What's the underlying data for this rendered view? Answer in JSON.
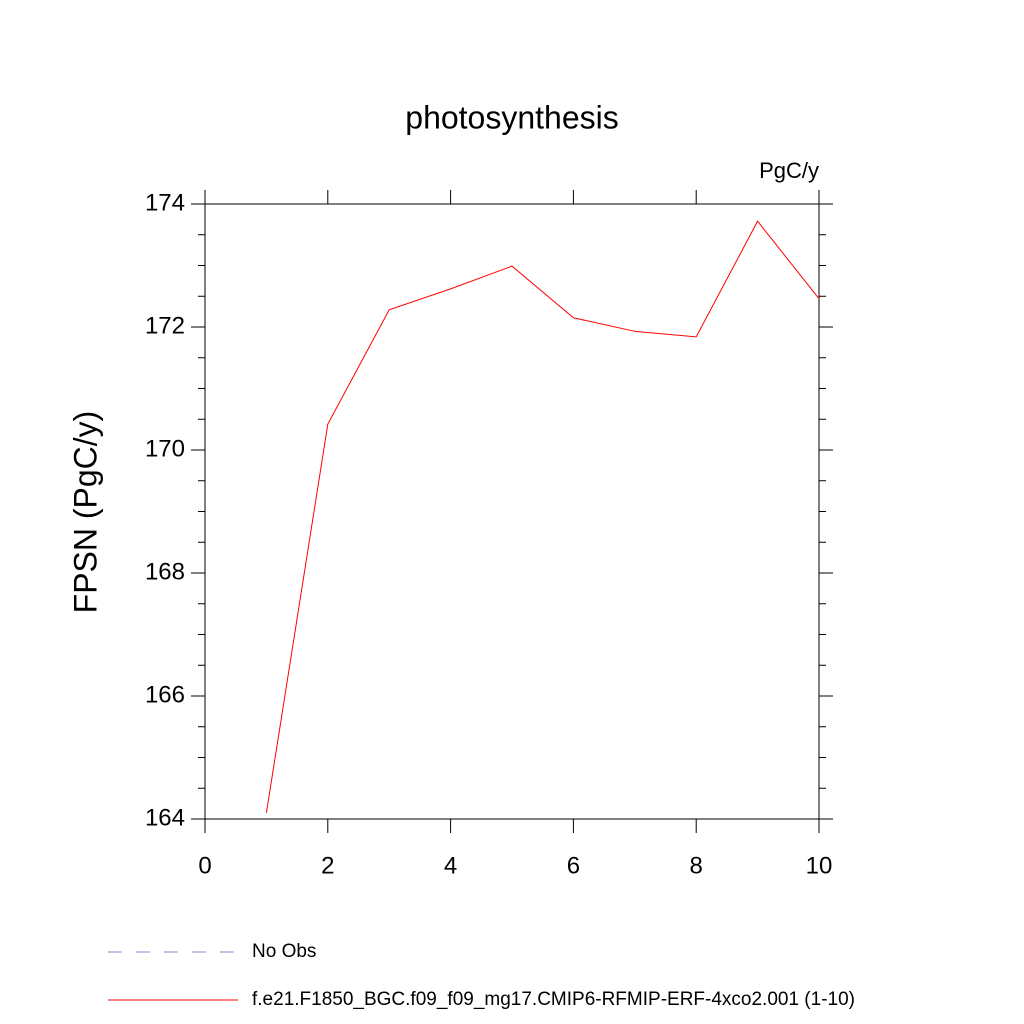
{
  "chart_data": {
    "type": "line",
    "title": "photosynthesis",
    "units": "PgC/y",
    "ylabel": "FPSN  (PgC/y)",
    "x": [
      1,
      2,
      3,
      4,
      5,
      6,
      7,
      8,
      9,
      10
    ],
    "series": [
      {
        "name": "No Obs",
        "color": "#8a7fc8",
        "dash": "dashed",
        "values": [
          null,
          null,
          null,
          null,
          null,
          null,
          null,
          null,
          null,
          null
        ]
      },
      {
        "name": "f.e21.F1850_BGC.f09_f09_mg17.CMIP6-RFMIP-ERF-4xco2.001 (1-10)",
        "color": "#ff0000",
        "dash": "solid",
        "values": [
          164.1,
          170.42,
          172.28,
          172.62,
          172.99,
          172.15,
          171.93,
          171.84,
          173.72,
          172.46
        ]
      }
    ],
    "xlim": [
      0,
      10
    ],
    "xticks": [
      0,
      2,
      4,
      6,
      8,
      10
    ],
    "ylim": [
      164,
      174
    ],
    "yticks": [
      164,
      166,
      168,
      170,
      172,
      174
    ],
    "yminorticks": [
      164.5,
      165,
      165.5,
      166.5,
      167,
      167.5,
      168.5,
      169,
      169.5,
      170.5,
      171,
      171.5,
      172.5,
      173,
      173.5
    ]
  }
}
